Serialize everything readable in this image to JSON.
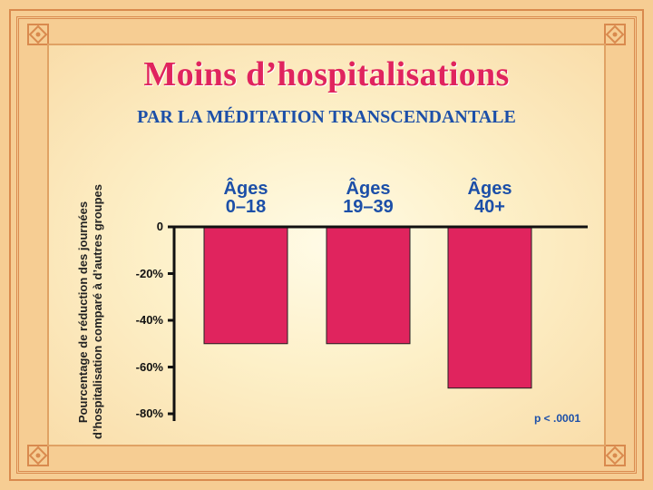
{
  "slide": {
    "title": "Moins d’hospitalisations",
    "subtitle": "PAR LA MÉDITATION TRANSCENDANTALE",
    "note": "p < .0001"
  },
  "colors": {
    "title": "#e0245e",
    "subtitle": "#1c4fa8",
    "bar": "#e0245e",
    "axis": "#111111"
  },
  "chart_data": {
    "type": "bar",
    "title": "Moins d’hospitalisations",
    "subtitle": "PAR LA MÉDITATION TRANSCENDANTALE",
    "ylabel_lines": [
      "Pourcentage de réduction des journées",
      "d’hospitalisation comparé à d’autres groupes"
    ],
    "categories": [
      [
        "Âges",
        "0–18"
      ],
      [
        "Âges",
        "19–39"
      ],
      [
        "Âges",
        "40+"
      ]
    ],
    "values": [
      -50,
      -50,
      -69
    ],
    "yticks": [
      0,
      -20,
      -40,
      -60,
      -80
    ],
    "ytick_labels": [
      "0",
      "-20%",
      "-40%",
      "-60%",
      "-80%"
    ],
    "ylim": [
      -80,
      0
    ],
    "grid": false,
    "annotation": "p < .0001"
  }
}
